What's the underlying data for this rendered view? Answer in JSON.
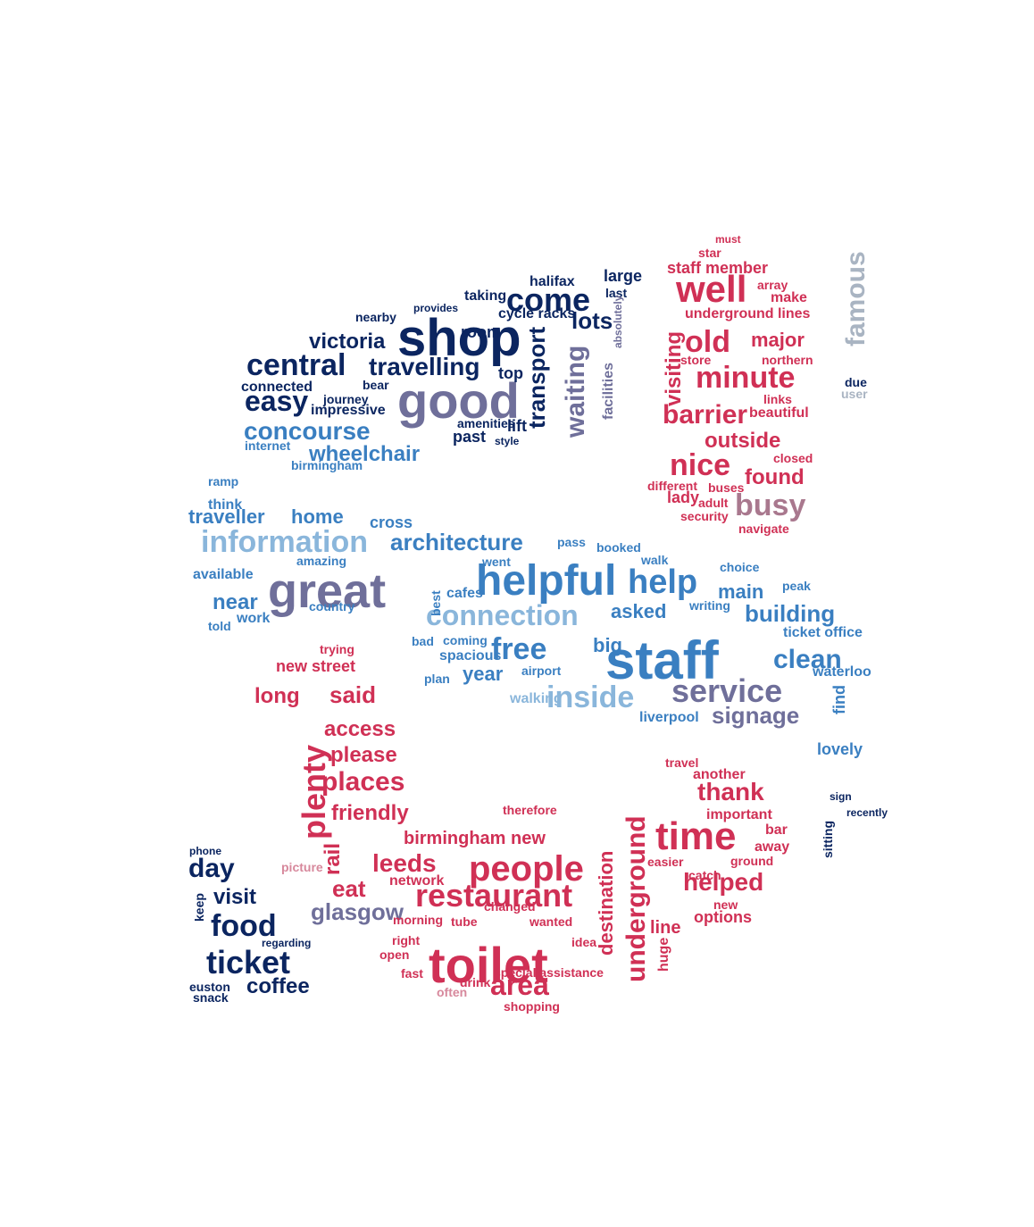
{
  "colors": {
    "navy": "#0b2560",
    "blue": "#3a7fc1",
    "lightblue": "#8ab6db",
    "purple": "#6f6f9a",
    "red": "#d03055",
    "pink": "#d7889c",
    "grey": "#a9b4c2",
    "mauve": "#a9788e"
  },
  "words": [
    {
      "t": "shop",
      "c": "navy"
    },
    {
      "t": "good",
      "c": "purple"
    },
    {
      "t": "come",
      "c": "navy"
    },
    {
      "t": "central",
      "c": "navy"
    },
    {
      "t": "travelling",
      "c": "navy"
    },
    {
      "t": "victoria",
      "c": "navy"
    },
    {
      "t": "easy",
      "c": "navy"
    },
    {
      "t": "concourse",
      "c": "blue"
    },
    {
      "t": "wheelchair",
      "c": "blue"
    },
    {
      "t": "transport",
      "c": "navy"
    },
    {
      "t": "waiting",
      "c": "purple"
    },
    {
      "t": "lots",
      "c": "navy"
    },
    {
      "t": "connected",
      "c": "navy"
    },
    {
      "t": "impressive",
      "c": "navy"
    },
    {
      "t": "journey",
      "c": "navy"
    },
    {
      "t": "nearby",
      "c": "navy"
    },
    {
      "t": "room",
      "c": "navy"
    },
    {
      "t": "cycle racks",
      "c": "navy"
    },
    {
      "t": "halifax",
      "c": "navy"
    },
    {
      "t": "large",
      "c": "navy"
    },
    {
      "t": "last",
      "c": "navy"
    },
    {
      "t": "top",
      "c": "navy"
    },
    {
      "t": "lift",
      "c": "navy"
    },
    {
      "t": "past",
      "c": "navy"
    },
    {
      "t": "amenities",
      "c": "navy"
    },
    {
      "t": "internet",
      "c": "blue"
    },
    {
      "t": "birmingham",
      "c": "blue"
    },
    {
      "t": "taking",
      "c": "navy"
    },
    {
      "t": "provides",
      "c": "navy"
    },
    {
      "t": "facilities",
      "c": "purple"
    },
    {
      "t": "absolutely",
      "c": "purple"
    },
    {
      "t": "style",
      "c": "navy"
    },
    {
      "t": "bear",
      "c": "navy"
    },
    {
      "t": "well",
      "c": "red"
    },
    {
      "t": "old",
      "c": "red"
    },
    {
      "t": "minute",
      "c": "red"
    },
    {
      "t": "major",
      "c": "red"
    },
    {
      "t": "barrier",
      "c": "red"
    },
    {
      "t": "nice",
      "c": "red"
    },
    {
      "t": "outside",
      "c": "red"
    },
    {
      "t": "busy",
      "c": "mauve"
    },
    {
      "t": "found",
      "c": "red"
    },
    {
      "t": "visiting",
      "c": "red"
    },
    {
      "t": "staff member",
      "c": "red"
    },
    {
      "t": "underground lines",
      "c": "red"
    },
    {
      "t": "northern",
      "c": "red"
    },
    {
      "t": "beautiful",
      "c": "red"
    },
    {
      "t": "closed",
      "c": "red"
    },
    {
      "t": "make",
      "c": "red"
    },
    {
      "t": "must",
      "c": "red"
    },
    {
      "t": "star",
      "c": "red"
    },
    {
      "t": "array",
      "c": "red"
    },
    {
      "t": "lady",
      "c": "red"
    },
    {
      "t": "adult",
      "c": "red"
    },
    {
      "t": "different",
      "c": "red"
    },
    {
      "t": "buses",
      "c": "red"
    },
    {
      "t": "navigate",
      "c": "red"
    },
    {
      "t": "security",
      "c": "red"
    },
    {
      "t": "store",
      "c": "red"
    },
    {
      "t": "links",
      "c": "red"
    },
    {
      "t": "famous",
      "c": "grey"
    },
    {
      "t": "user",
      "c": "grey"
    },
    {
      "t": "due",
      "c": "navy"
    },
    {
      "t": "information",
      "c": "lightblue"
    },
    {
      "t": "great",
      "c": "purple"
    },
    {
      "t": "helpful",
      "c": "blue"
    },
    {
      "t": "help",
      "c": "blue"
    },
    {
      "t": "architecture",
      "c": "blue"
    },
    {
      "t": "connection",
      "c": "lightblue"
    },
    {
      "t": "staff",
      "c": "blue"
    },
    {
      "t": "free",
      "c": "blue"
    },
    {
      "t": "inside",
      "c": "lightblue"
    },
    {
      "t": "service",
      "c": "purple"
    },
    {
      "t": "signage",
      "c": "purple"
    },
    {
      "t": "clean",
      "c": "blue"
    },
    {
      "t": "building",
      "c": "blue"
    },
    {
      "t": "main",
      "c": "blue"
    },
    {
      "t": "asked",
      "c": "blue"
    },
    {
      "t": "traveller",
      "c": "blue"
    },
    {
      "t": "home",
      "c": "blue"
    },
    {
      "t": "cross",
      "c": "blue"
    },
    {
      "t": "near",
      "c": "blue"
    },
    {
      "t": "work",
      "c": "blue"
    },
    {
      "t": "think",
      "c": "blue"
    },
    {
      "t": "available",
      "c": "blue"
    },
    {
      "t": "year",
      "c": "blue"
    },
    {
      "t": "big",
      "c": "blue"
    },
    {
      "t": "walking",
      "c": "lightblue"
    },
    {
      "t": "liverpool",
      "c": "blue"
    },
    {
      "t": "find",
      "c": "blue"
    },
    {
      "t": "lovely",
      "c": "blue"
    },
    {
      "t": "waterloo",
      "c": "blue"
    },
    {
      "t": "ticket office",
      "c": "blue"
    },
    {
      "t": "cafes",
      "c": "blue"
    },
    {
      "t": "spacious",
      "c": "blue"
    },
    {
      "t": "country",
      "c": "blue"
    },
    {
      "t": "amazing",
      "c": "blue"
    },
    {
      "t": "booked",
      "c": "blue"
    },
    {
      "t": "walk",
      "c": "blue"
    },
    {
      "t": "choice",
      "c": "blue"
    },
    {
      "t": "peak",
      "c": "blue"
    },
    {
      "t": "writing",
      "c": "blue"
    },
    {
      "t": "airport",
      "c": "blue"
    },
    {
      "t": "plan",
      "c": "blue"
    },
    {
      "t": "bad",
      "c": "blue"
    },
    {
      "t": "coming",
      "c": "blue"
    },
    {
      "t": "told",
      "c": "blue"
    },
    {
      "t": "pass",
      "c": "blue"
    },
    {
      "t": "went",
      "c": "blue"
    },
    {
      "t": "best",
      "c": "blue"
    },
    {
      "t": "ramp",
      "c": "blue"
    },
    {
      "t": "toilet",
      "c": "red"
    },
    {
      "t": "people",
      "c": "red"
    },
    {
      "t": "restaurant",
      "c": "red"
    },
    {
      "t": "area",
      "c": "red"
    },
    {
      "t": "time",
      "c": "red"
    },
    {
      "t": "plenty",
      "c": "red"
    },
    {
      "t": "places",
      "c": "red"
    },
    {
      "t": "friendly",
      "c": "red"
    },
    {
      "t": "leeds",
      "c": "red"
    },
    {
      "t": "eat",
      "c": "red"
    },
    {
      "t": "glasgow",
      "c": "purple"
    },
    {
      "t": "birmingham new",
      "c": "red"
    },
    {
      "t": "please",
      "c": "red"
    },
    {
      "t": "access",
      "c": "red"
    },
    {
      "t": "said",
      "c": "red"
    },
    {
      "t": "long",
      "c": "red"
    },
    {
      "t": "new street",
      "c": "red"
    },
    {
      "t": "rail",
      "c": "red"
    },
    {
      "t": "thank",
      "c": "red"
    },
    {
      "t": "helped",
      "c": "red"
    },
    {
      "t": "underground",
      "c": "red"
    },
    {
      "t": "destination",
      "c": "red"
    },
    {
      "t": "line",
      "c": "red"
    },
    {
      "t": "important",
      "c": "red"
    },
    {
      "t": "another",
      "c": "red"
    },
    {
      "t": "travel",
      "c": "red"
    },
    {
      "t": "bar",
      "c": "red"
    },
    {
      "t": "away",
      "c": "red"
    },
    {
      "t": "ground",
      "c": "red"
    },
    {
      "t": "catch",
      "c": "red"
    },
    {
      "t": "easier",
      "c": "red"
    },
    {
      "t": "options",
      "c": "red"
    },
    {
      "t": "new",
      "c": "red"
    },
    {
      "t": "huge",
      "c": "red"
    },
    {
      "t": "network",
      "c": "red"
    },
    {
      "t": "tube",
      "c": "red"
    },
    {
      "t": "wanted",
      "c": "red"
    },
    {
      "t": "morning",
      "c": "red"
    },
    {
      "t": "right",
      "c": "red"
    },
    {
      "t": "open",
      "c": "red"
    },
    {
      "t": "fast",
      "c": "red"
    },
    {
      "t": "drink",
      "c": "red"
    },
    {
      "t": "idea",
      "c": "red"
    },
    {
      "t": "shopping",
      "c": "red"
    },
    {
      "t": "special assistance",
      "c": "red"
    },
    {
      "t": "changed",
      "c": "red"
    },
    {
      "t": "therefore",
      "c": "red"
    },
    {
      "t": "trying",
      "c": "red"
    },
    {
      "t": "picture",
      "c": "pink"
    },
    {
      "t": "often",
      "c": "pink"
    },
    {
      "t": "day",
      "c": "navy"
    },
    {
      "t": "visit",
      "c": "navy"
    },
    {
      "t": "food",
      "c": "navy"
    },
    {
      "t": "ticket",
      "c": "navy"
    },
    {
      "t": "coffee",
      "c": "navy"
    },
    {
      "t": "euston",
      "c": "navy"
    },
    {
      "t": "snack",
      "c": "navy"
    },
    {
      "t": "keep",
      "c": "navy"
    },
    {
      "t": "regarding",
      "c": "navy"
    },
    {
      "t": "phone",
      "c": "navy"
    },
    {
      "t": "sitting",
      "c": "navy"
    },
    {
      "t": "sign",
      "c": "navy"
    },
    {
      "t": "recently",
      "c": "navy"
    }
  ]
}
